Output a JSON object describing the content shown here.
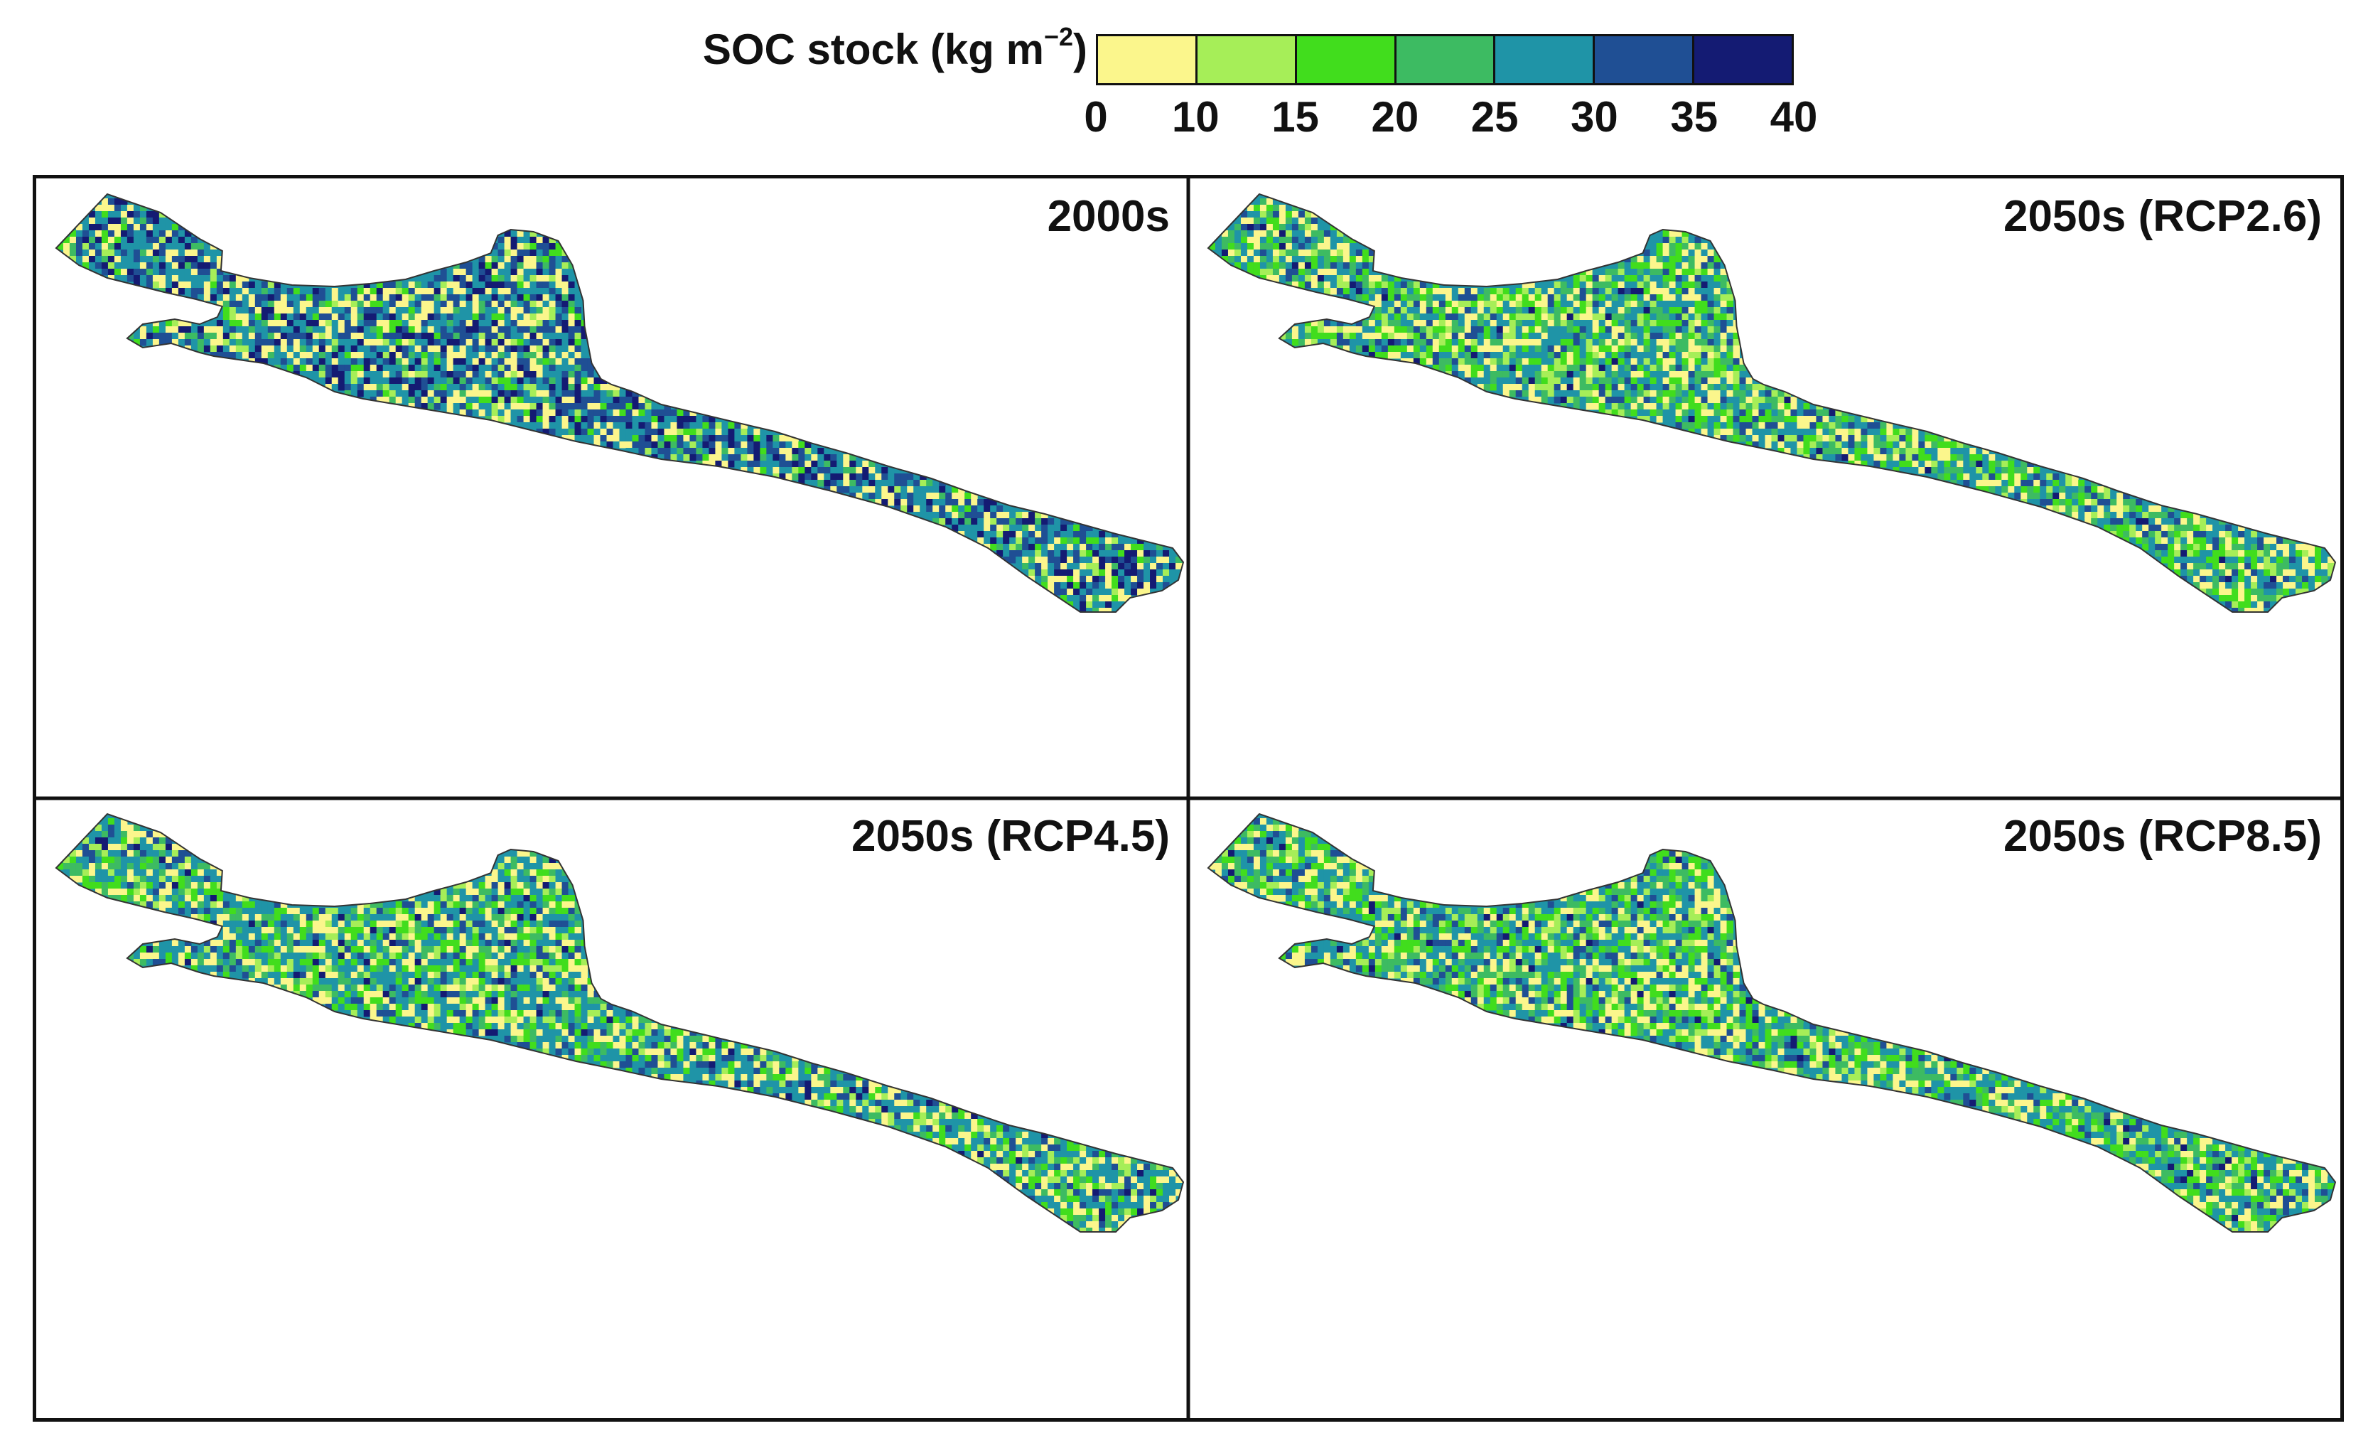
{
  "legend": {
    "title": "SOC stock (kg m",
    "title_sup": "−2",
    "title_close": ")",
    "ticks": [
      "0",
      "10",
      "15",
      "20",
      "25",
      "30",
      "35",
      "40"
    ],
    "classes": [
      {
        "range": [
          0,
          10
        ],
        "color": "#fbf68c"
      },
      {
        "range": [
          10,
          15
        ],
        "color": "#a6ee58"
      },
      {
        "range": [
          15,
          20
        ],
        "color": "#41dd1d"
      },
      {
        "range": [
          20,
          25
        ],
        "color": "#3dbb62"
      },
      {
        "range": [
          25,
          30
        ],
        "color": "#1f94a7"
      },
      {
        "range": [
          30,
          35
        ],
        "color": "#1f4f94"
      },
      {
        "range": [
          35,
          40
        ],
        "color": "#141b73"
      }
    ]
  },
  "panels": [
    {
      "title": "2000s",
      "weights": [
        0.2,
        0.05,
        0.06,
        0.06,
        0.3,
        0.2,
        0.13
      ]
    },
    {
      "title": "2050s (RCP2.6)",
      "weights": [
        0.2,
        0.1,
        0.15,
        0.15,
        0.28,
        0.1,
        0.02
      ]
    },
    {
      "title": "2050s (RCP4.5)",
      "weights": [
        0.22,
        0.08,
        0.14,
        0.13,
        0.3,
        0.1,
        0.03
      ]
    },
    {
      "title": "2050s (RCP8.5)",
      "weights": [
        0.2,
        0.1,
        0.17,
        0.16,
        0.27,
        0.08,
        0.02
      ]
    }
  ]
}
